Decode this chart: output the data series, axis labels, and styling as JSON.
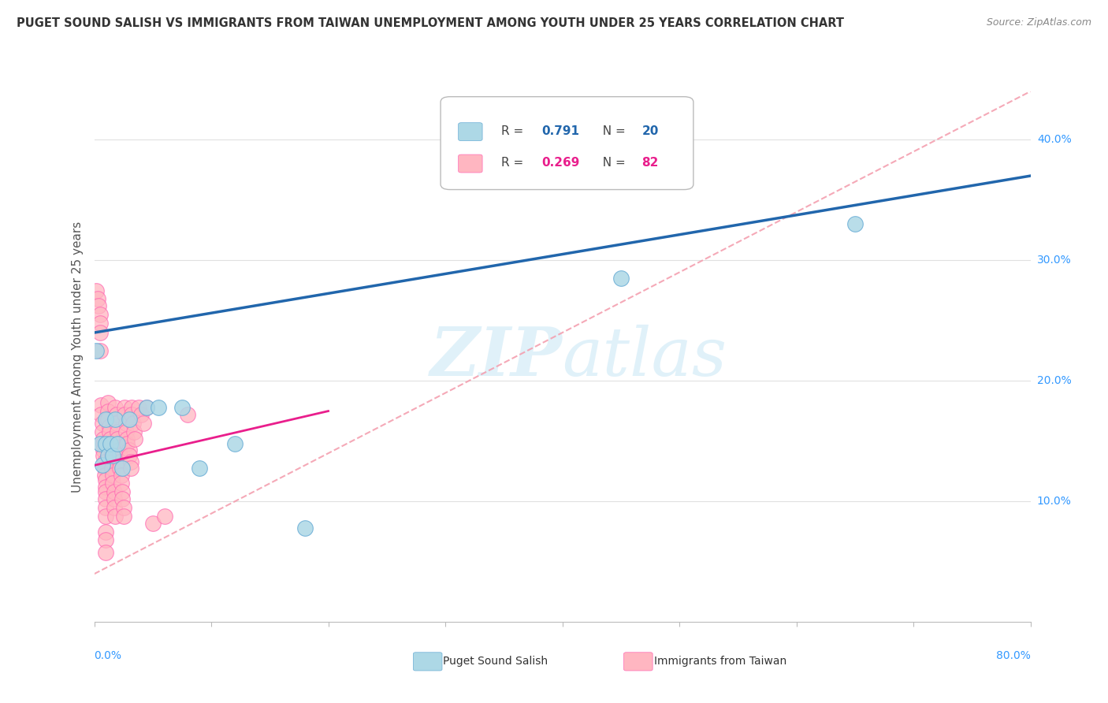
{
  "title": "PUGET SOUND SALISH VS IMMIGRANTS FROM TAIWAN UNEMPLOYMENT AMONG YOUTH UNDER 25 YEARS CORRELATION CHART",
  "source": "Source: ZipAtlas.com",
  "ylabel": "Unemployment Among Youth under 25 years",
  "xlim": [
    0.0,
    0.8
  ],
  "ylim": [
    0.0,
    0.44
  ],
  "watermark_zip": "ZIP",
  "watermark_atlas": "atlas",
  "color_blue_fill": "#ADD8E6",
  "color_blue_edge": "#6BAED6",
  "color_pink_fill": "#FFB6C1",
  "color_pink_edge": "#FF69B4",
  "color_line_blue": "#2166AC",
  "color_line_pink": "#E91E8C",
  "color_dashed": "#F4A0B0",
  "color_grid": "#E0E0E0",
  "blue_points": [
    [
      0.002,
      0.225
    ],
    [
      0.005,
      0.148
    ],
    [
      0.007,
      0.13
    ],
    [
      0.01,
      0.168
    ],
    [
      0.01,
      0.148
    ],
    [
      0.012,
      0.138
    ],
    [
      0.014,
      0.148
    ],
    [
      0.016,
      0.138
    ],
    [
      0.018,
      0.168
    ],
    [
      0.02,
      0.148
    ],
    [
      0.024,
      0.128
    ],
    [
      0.03,
      0.168
    ],
    [
      0.045,
      0.178
    ],
    [
      0.055,
      0.178
    ],
    [
      0.075,
      0.178
    ],
    [
      0.09,
      0.128
    ],
    [
      0.12,
      0.148
    ],
    [
      0.18,
      0.078
    ],
    [
      0.45,
      0.285
    ],
    [
      0.65,
      0.33
    ]
  ],
  "pink_points": [
    [
      0.002,
      0.275
    ],
    [
      0.003,
      0.268
    ],
    [
      0.004,
      0.262
    ],
    [
      0.005,
      0.255
    ],
    [
      0.005,
      0.248
    ],
    [
      0.005,
      0.24
    ],
    [
      0.005,
      0.225
    ],
    [
      0.006,
      0.18
    ],
    [
      0.006,
      0.172
    ],
    [
      0.007,
      0.165
    ],
    [
      0.007,
      0.158
    ],
    [
      0.008,
      0.152
    ],
    [
      0.008,
      0.148
    ],
    [
      0.008,
      0.143
    ],
    [
      0.008,
      0.138
    ],
    [
      0.009,
      0.133
    ],
    [
      0.009,
      0.128
    ],
    [
      0.009,
      0.122
    ],
    [
      0.01,
      0.118
    ],
    [
      0.01,
      0.112
    ],
    [
      0.01,
      0.108
    ],
    [
      0.01,
      0.102
    ],
    [
      0.01,
      0.095
    ],
    [
      0.01,
      0.088
    ],
    [
      0.01,
      0.075
    ],
    [
      0.01,
      0.068
    ],
    [
      0.01,
      0.058
    ],
    [
      0.012,
      0.182
    ],
    [
      0.012,
      0.175
    ],
    [
      0.012,
      0.168
    ],
    [
      0.013,
      0.162
    ],
    [
      0.013,
      0.158
    ],
    [
      0.014,
      0.152
    ],
    [
      0.014,
      0.148
    ],
    [
      0.015,
      0.143
    ],
    [
      0.015,
      0.138
    ],
    [
      0.015,
      0.133
    ],
    [
      0.015,
      0.128
    ],
    [
      0.016,
      0.122
    ],
    [
      0.016,
      0.115
    ],
    [
      0.017,
      0.108
    ],
    [
      0.017,
      0.102
    ],
    [
      0.017,
      0.095
    ],
    [
      0.018,
      0.088
    ],
    [
      0.018,
      0.178
    ],
    [
      0.019,
      0.172
    ],
    [
      0.019,
      0.165
    ],
    [
      0.02,
      0.158
    ],
    [
      0.02,
      0.152
    ],
    [
      0.021,
      0.148
    ],
    [
      0.021,
      0.143
    ],
    [
      0.022,
      0.138
    ],
    [
      0.022,
      0.133
    ],
    [
      0.022,
      0.128
    ],
    [
      0.023,
      0.122
    ],
    [
      0.023,
      0.115
    ],
    [
      0.024,
      0.108
    ],
    [
      0.024,
      0.102
    ],
    [
      0.025,
      0.095
    ],
    [
      0.025,
      0.088
    ],
    [
      0.026,
      0.178
    ],
    [
      0.026,
      0.172
    ],
    [
      0.027,
      0.165
    ],
    [
      0.027,
      0.158
    ],
    [
      0.028,
      0.152
    ],
    [
      0.028,
      0.148
    ],
    [
      0.03,
      0.143
    ],
    [
      0.03,
      0.138
    ],
    [
      0.031,
      0.133
    ],
    [
      0.031,
      0.128
    ],
    [
      0.032,
      0.178
    ],
    [
      0.032,
      0.172
    ],
    [
      0.033,
      0.165
    ],
    [
      0.034,
      0.158
    ],
    [
      0.035,
      0.152
    ],
    [
      0.038,
      0.178
    ],
    [
      0.04,
      0.172
    ],
    [
      0.042,
      0.165
    ],
    [
      0.045,
      0.178
    ],
    [
      0.05,
      0.082
    ],
    [
      0.06,
      0.088
    ],
    [
      0.08,
      0.172
    ]
  ],
  "blue_line": {
    "x0": 0.0,
    "y0": 0.24,
    "x1": 0.8,
    "y1": 0.37
  },
  "pink_line": {
    "x0": 0.0,
    "y0": 0.13,
    "x1": 0.2,
    "y1": 0.175
  },
  "dashed_line": {
    "x0": 0.0,
    "y0": 0.04,
    "x1": 0.8,
    "y1": 0.44
  },
  "legend": {
    "r1": "0.791",
    "n1": "20",
    "r2": "0.269",
    "n2": "82"
  },
  "yticks": [
    0.1,
    0.2,
    0.3,
    0.4
  ],
  "ytick_labels": [
    "10.0%",
    "20.0%",
    "30.0%",
    "40.0%"
  ],
  "xtick_left_label": "0.0%",
  "xtick_right_label": "80.0%"
}
